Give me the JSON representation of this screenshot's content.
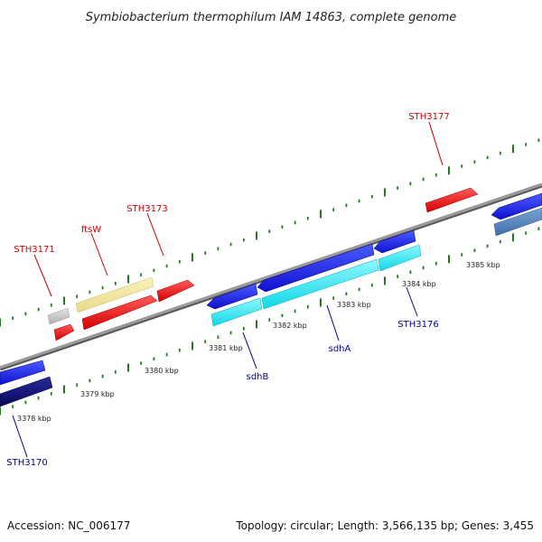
{
  "title": "Symbiobacterium thermophilum IAM 14863, complete genome",
  "footer": {
    "accession": "Accession: NC_006177",
    "summary": "Topology: circular; Length: 3,566,135 bp; Genes: 3,455"
  },
  "colors": {
    "forward_label": "#cc0000",
    "reverse_label": "#00008b",
    "tick": "#1f7a1f",
    "backbone": "#8a8a8a"
  },
  "ticks": [
    {
      "label": "3378 kbp"
    },
    {
      "label": "3379 kbp"
    },
    {
      "label": "3380 kbp"
    },
    {
      "label": "3381 kbp"
    },
    {
      "label": "3382 kbp"
    },
    {
      "label": "3383 kbp"
    },
    {
      "label": "3384 kbp"
    },
    {
      "label": "3385 kbp"
    }
  ],
  "genes": [
    {
      "name": "STH3171",
      "strand": "forward",
      "color": "#cc0000"
    },
    {
      "name": "ftsW",
      "strand": "forward",
      "color": "#cc0000"
    },
    {
      "name": "STH3173",
      "strand": "forward",
      "color": "#cc0000"
    },
    {
      "name": "STH3177",
      "strand": "forward",
      "color": "#cc0000"
    },
    {
      "name": "sdhB",
      "strand": "reverse",
      "color": "#00008b"
    },
    {
      "name": "sdhA",
      "strand": "reverse",
      "color": "#00008b"
    },
    {
      "name": "STH3176",
      "strand": "reverse",
      "color": "#00008b"
    },
    {
      "name": "STH3170",
      "strand": "reverse",
      "color": "#00008b"
    }
  ]
}
